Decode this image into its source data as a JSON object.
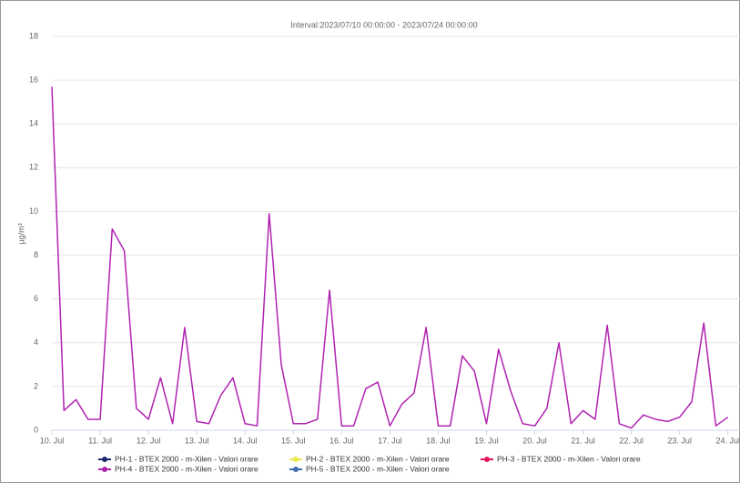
{
  "chart_data": {
    "type": "line",
    "title": "Interval:2023/07/10 00:00:00 - 2023/07/24 00:00:00",
    "y_label": "µg/m³",
    "x": [
      "2023-07-10 00:00",
      "2023-07-10 06:00",
      "2023-07-10 12:00",
      "2023-07-10 18:00",
      "2023-07-11 00:00",
      "2023-07-11 06:00",
      "2023-07-11 12:00",
      "2023-07-11 18:00",
      "2023-07-12 00:00",
      "2023-07-12 06:00",
      "2023-07-12 12:00",
      "2023-07-12 18:00",
      "2023-07-13 00:00",
      "2023-07-13 06:00",
      "2023-07-13 12:00",
      "2023-07-13 18:00",
      "2023-07-14 00:00",
      "2023-07-14 06:00",
      "2023-07-14 12:00",
      "2023-07-14 18:00",
      "2023-07-15 00:00",
      "2023-07-15 06:00",
      "2023-07-15 12:00",
      "2023-07-15 18:00",
      "2023-07-16 00:00",
      "2023-07-16 06:00",
      "2023-07-16 12:00",
      "2023-07-16 18:00",
      "2023-07-17 00:00",
      "2023-07-17 06:00",
      "2023-07-17 12:00",
      "2023-07-17 18:00",
      "2023-07-18 00:00",
      "2023-07-18 06:00",
      "2023-07-18 12:00",
      "2023-07-18 18:00",
      "2023-07-19 00:00",
      "2023-07-19 06:00",
      "2023-07-19 12:00",
      "2023-07-19 18:00",
      "2023-07-20 00:00",
      "2023-07-20 06:00",
      "2023-07-20 12:00",
      "2023-07-20 18:00",
      "2023-07-21 00:00",
      "2023-07-21 06:00",
      "2023-07-21 12:00",
      "2023-07-21 18:00",
      "2023-07-22 00:00",
      "2023-07-22 06:00",
      "2023-07-22 12:00",
      "2023-07-22 18:00",
      "2023-07-23 00:00",
      "2023-07-23 06:00",
      "2023-07-23 12:00",
      "2023-07-23 18:00",
      "2023-07-24 00:00"
    ],
    "series": [
      {
        "name": "PH-1 - BTEX 2000 - m-Xilen - Valori orare",
        "color": "#1c2a6e",
        "values": [
          null,
          null,
          null,
          null,
          null,
          null,
          null,
          null,
          null,
          null,
          null,
          null,
          null,
          null,
          null,
          null,
          null,
          null,
          null,
          null,
          null,
          null,
          null,
          null,
          null,
          null,
          null,
          null,
          null,
          null,
          null,
          null,
          null,
          null,
          null,
          null,
          null,
          null,
          null,
          null,
          null,
          null,
          null,
          null,
          null,
          null,
          null,
          null,
          null,
          null,
          null,
          null,
          null,
          null,
          null,
          null,
          null
        ]
      },
      {
        "name": "PH-2 - BTEX 2000 - m-Xilen - Valori orare",
        "color": "#e8e84a",
        "values": [
          null,
          null,
          null,
          null,
          null,
          null,
          null,
          null,
          null,
          null,
          null,
          null,
          null,
          null,
          null,
          null,
          null,
          null,
          null,
          null,
          null,
          null,
          null,
          null,
          null,
          null,
          null,
          null,
          null,
          null,
          null,
          null,
          null,
          null,
          null,
          null,
          null,
          null,
          null,
          null,
          null,
          null,
          null,
          null,
          null,
          null,
          null,
          null,
          null,
          null,
          null,
          null,
          null,
          null,
          null,
          null,
          null
        ]
      },
      {
        "name": "PH-3 - BTEX 2000 - m-Xilen - Valori orare",
        "color": "#e5175e",
        "values": [
          null,
          null,
          null,
          null,
          null,
          null,
          null,
          null,
          null,
          null,
          null,
          null,
          null,
          null,
          null,
          null,
          null,
          null,
          null,
          null,
          null,
          null,
          null,
          null,
          null,
          null,
          null,
          null,
          null,
          null,
          null,
          null,
          null,
          null,
          null,
          null,
          null,
          null,
          null,
          null,
          null,
          null,
          null,
          null,
          null,
          null,
          null,
          null,
          null,
          null,
          null,
          null,
          null,
          null,
          null,
          null,
          null
        ]
      },
      {
        "name": "PH-4 - BTEX 2000 - m-Xilen - Valori orare",
        "color": "#b023b0",
        "values": [
          15.7,
          0.9,
          1.4,
          0.5,
          0.5,
          9.2,
          8.2,
          1.0,
          0.5,
          2.4,
          0.3,
          4.7,
          0.4,
          0.3,
          1.6,
          2.4,
          0.3,
          0.2,
          9.9,
          3.0,
          0.3,
          0.3,
          0.5,
          6.4,
          0.2,
          0.2,
          1.9,
          2.2,
          0.2,
          1.2,
          1.7,
          4.7,
          0.2,
          0.2,
          3.4,
          2.7,
          0.3,
          3.7,
          1.8,
          0.3,
          0.2,
          1.0,
          4.0,
          0.3,
          0.9,
          0.5,
          4.8,
          0.3,
          0.1,
          0.7,
          0.5,
          0.4,
          0.6,
          1.3,
          4.9,
          0.2,
          0.6
        ]
      },
      {
        "name": "PH-5 - BTEX 2000 - m-Xilen - Valori orare",
        "color": "#3f6db0",
        "values": [
          null,
          null,
          null,
          null,
          null,
          null,
          null,
          null,
          null,
          null,
          null,
          null,
          null,
          null,
          null,
          null,
          null,
          null,
          null,
          null,
          null,
          null,
          null,
          null,
          null,
          null,
          null,
          null,
          null,
          null,
          null,
          null,
          null,
          null,
          null,
          null,
          null,
          null,
          null,
          null,
          null,
          null,
          null,
          null,
          null,
          null,
          null,
          null,
          null,
          null,
          null,
          null,
          null,
          null,
          null,
          null,
          null
        ]
      }
    ],
    "xlim": [
      "2023-07-10 00:00",
      "2023-07-24 06:00"
    ],
    "xticks": [
      {
        "value": "2023-07-10 00:00",
        "label": "10. Jul"
      },
      {
        "value": "2023-07-11 00:00",
        "label": "11. Jul"
      },
      {
        "value": "2023-07-12 00:00",
        "label": "12. Jul"
      },
      {
        "value": "2023-07-13 00:00",
        "label": "13. Jul"
      },
      {
        "value": "2023-07-14 00:00",
        "label": "14. Jul"
      },
      {
        "value": "2023-07-15 00:00",
        "label": "15. Jul"
      },
      {
        "value": "2023-07-16 00:00",
        "label": "16. Jul"
      },
      {
        "value": "2023-07-17 00:00",
        "label": "17. Jul"
      },
      {
        "value": "2023-07-18 00:00",
        "label": "18. Jul"
      },
      {
        "value": "2023-07-19 00:00",
        "label": "19. Jul"
      },
      {
        "value": "2023-07-20 00:00",
        "label": "20. Jul"
      },
      {
        "value": "2023-07-21 00:00",
        "label": "21. Jul"
      },
      {
        "value": "2023-07-22 00:00",
        "label": "22. Jul"
      },
      {
        "value": "2023-07-23 00:00",
        "label": "23. Jul"
      },
      {
        "value": "2023-07-24 00:00",
        "label": "24. Jul"
      }
    ],
    "ylim": [
      0,
      18
    ],
    "yticks": [
      0,
      2,
      4,
      6,
      8,
      10,
      12,
      14,
      16,
      18
    ],
    "grid": true
  }
}
